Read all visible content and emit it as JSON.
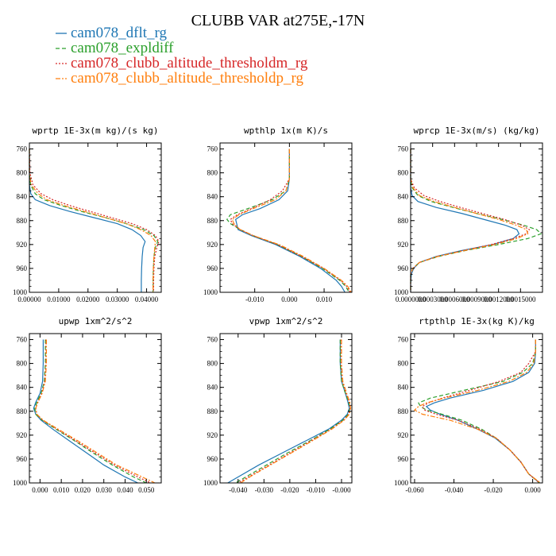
{
  "figure": {
    "title": "CLUBB VAR at275E,-17N"
  },
  "legend": [
    {
      "name": "cam078_dflt_rg",
      "color": "#1f77b4",
      "dash": "solid"
    },
    {
      "name": "cam078_expldiff",
      "color": "#2ca02c",
      "dash": "dash"
    },
    {
      "name": "cam078_clubb_altitude_thresholdm_rg",
      "color": "#d62728",
      "dash": "dot"
    },
    {
      "name": "cam078_clubb_altitude_thresholdp_rg",
      "color": "#ff7f0e",
      "dash": "dashdot"
    }
  ],
  "chart_data": [
    {
      "type": "line",
      "title": "wprtp  1E-3x(m kg)/(s kg)",
      "xlim": [
        0,
        0.045
      ],
      "ylim": [
        1000,
        750
      ],
      "xticks": [
        0,
        0.01,
        0.02,
        0.03,
        0.04
      ],
      "xtick_labels": [
        "0.00000",
        "0.01000",
        "0.02000",
        "0.03000",
        "0.04000"
      ],
      "yticks": [
        760,
        800,
        840,
        880,
        920,
        960,
        1000
      ],
      "y": [
        760,
        800,
        820,
        835,
        845,
        855,
        865,
        875,
        885,
        895,
        905,
        915,
        925,
        940,
        960,
        980,
        1000
      ],
      "series": [
        {
          "values": [
            0,
            0,
            0,
            0.0005,
            0.002,
            0.007,
            0.014,
            0.022,
            0.03,
            0.035,
            0.038,
            0.0395,
            0.0388,
            0.0385,
            0.0383,
            0.0382,
            0.0382
          ]
        },
        {
          "values": [
            0,
            0,
            0.0004,
            0.002,
            0.005,
            0.011,
            0.018,
            0.026,
            0.033,
            0.039,
            0.0425,
            0.0438,
            0.043,
            0.0425,
            0.0423,
            0.0422,
            0.0422
          ]
        },
        {
          "values": [
            0,
            0.0002,
            0.0012,
            0.004,
            0.008,
            0.014,
            0.021,
            0.028,
            0.035,
            0.04,
            0.043,
            0.0442,
            0.0435,
            0.0428,
            0.0425,
            0.0424,
            0.0424
          ]
        },
        {
          "values": [
            0,
            0,
            0.0006,
            0.003,
            0.006,
            0.012,
            0.019,
            0.026,
            0.033,
            0.038,
            0.0415,
            0.043,
            0.0428,
            0.0425,
            0.0423,
            0.0422,
            0.0422
          ]
        }
      ]
    },
    {
      "type": "line",
      "title": "wpthlp  1x(m K)/s",
      "xlim": [
        -0.02,
        0.018
      ],
      "ylim": [
        1000,
        750
      ],
      "xticks": [
        -0.01,
        0,
        0.01
      ],
      "xtick_labels": [
        "-0.010",
        "0.000",
        "0.010"
      ],
      "yticks": [
        760,
        800,
        840,
        880,
        920,
        960,
        1000
      ],
      "y": [
        760,
        810,
        830,
        845,
        860,
        870,
        878,
        885,
        895,
        905,
        920,
        940,
        960,
        980,
        990,
        1000
      ],
      "series": [
        {
          "values": [
            0,
            0,
            -0.0005,
            -0.003,
            -0.0085,
            -0.0135,
            -0.0155,
            -0.0152,
            -0.0148,
            -0.011,
            -0.004,
            0.003,
            0.009,
            0.0135,
            0.015,
            0.016
          ]
        },
        {
          "values": [
            0,
            0,
            -0.001,
            -0.005,
            -0.012,
            -0.017,
            -0.018,
            -0.017,
            -0.0142,
            -0.0105,
            -0.0035,
            0.0035,
            0.0095,
            0.0145,
            0.0162,
            0.0172
          ]
        },
        {
          "values": [
            0,
            0,
            -0.002,
            -0.0055,
            -0.011,
            -0.015,
            -0.017,
            -0.0165,
            -0.0142,
            -0.0105,
            -0.0035,
            0.0035,
            0.0098,
            0.0148,
            0.0165,
            0.0175
          ]
        },
        {
          "values": [
            0,
            0,
            -0.001,
            -0.004,
            -0.0105,
            -0.0145,
            -0.0165,
            -0.016,
            -0.0142,
            -0.0105,
            -0.003,
            0.004,
            0.01,
            0.015,
            0.0168,
            0.0178
          ]
        }
      ]
    },
    {
      "type": "line",
      "title": "wprcp  1E-3x(m/s) (kg/kg)",
      "xlim": [
        0,
        0.0018
      ],
      "ylim": [
        1000,
        750
      ],
      "xticks": [
        0,
        0.0003,
        0.0006,
        0.0009,
        0.0012,
        0.0015
      ],
      "xtick_labels": [
        "0.0000000",
        "0.0003000",
        "0.0006000",
        "0.0009000",
        "0.0012000",
        "0.0015000"
      ],
      "yticks": [
        760,
        800,
        840,
        880,
        920,
        960,
        1000
      ],
      "y": [
        760,
        810,
        825,
        838,
        848,
        858,
        868,
        878,
        888,
        895,
        902,
        910,
        920,
        930,
        940,
        950,
        960,
        970,
        985,
        1000
      ],
      "series": [
        {
          "values": [
            0,
            0,
            0,
            2e-05,
            0.0001,
            0.00035,
            0.0007,
            0.001,
            0.0013,
            0.00145,
            0.00148,
            0.0014,
            0.00112,
            0.0007,
            0.00035,
            0.00012,
            4e-05,
            1e-05,
            0,
            0
          ]
        },
        {
          "values": [
            0,
            0,
            2e-05,
            0.0001,
            0.00028,
            0.00058,
            0.0009,
            0.00125,
            0.00155,
            0.00172,
            0.00178,
            0.0016,
            0.0012,
            0.00075,
            0.00038,
            0.00012,
            3e-05,
            0,
            0,
            0
          ]
        },
        {
          "values": [
            0,
            0,
            5e-05,
            0.00018,
            0.0004,
            0.00068,
            0.00098,
            0.00128,
            0.00152,
            0.00162,
            0.00158,
            0.0014,
            0.0011,
            0.00072,
            0.00036,
            0.00012,
            3e-05,
            0,
            0,
            0
          ]
        },
        {
          "values": [
            0,
            0,
            3e-05,
            0.00012,
            0.00032,
            0.0006,
            0.0009,
            0.0012,
            0.00145,
            0.00158,
            0.0016,
            0.00145,
            0.00115,
            0.00074,
            0.00037,
            0.00012,
            3e-05,
            0,
            0,
            0
          ]
        }
      ]
    },
    {
      "type": "line",
      "title": "upwp  1xm^2/s^2",
      "xlim": [
        -0.005,
        0.057
      ],
      "ylim": [
        1000,
        750
      ],
      "xticks": [
        0,
        0.01,
        0.02,
        0.03,
        0.04,
        0.05
      ],
      "xtick_labels": [
        "0.000",
        "0.010",
        "0.020",
        "0.030",
        "0.040",
        "0.050"
      ],
      "yticks": [
        760,
        800,
        840,
        880,
        920,
        960,
        1000
      ],
      "y": [
        760,
        800,
        830,
        850,
        865,
        875,
        885,
        895,
        910,
        930,
        950,
        970,
        990,
        1000
      ],
      "series": [
        {
          "values": [
            0.0015,
            0.0015,
            0.0012,
            0,
            -0.002,
            -0.003,
            -0.002,
            0.0005,
            0.006,
            0.014,
            0.022,
            0.03,
            0.04,
            0.046
          ]
        },
        {
          "values": [
            0.0025,
            0.0025,
            0.002,
            0.0005,
            -0.0015,
            -0.0025,
            -0.002,
            0.001,
            0.0075,
            0.0165,
            0.025,
            0.034,
            0.044,
            0.05
          ]
        },
        {
          "values": [
            0.0028,
            0.0028,
            0.0022,
            0.0008,
            -0.001,
            -0.002,
            -0.0015,
            0.0012,
            0.008,
            0.017,
            0.026,
            0.035,
            0.046,
            0.052
          ]
        },
        {
          "values": [
            0.003,
            0.003,
            0.0025,
            0.001,
            -0.001,
            -0.002,
            -0.0015,
            0.0015,
            0.0085,
            0.018,
            0.027,
            0.036,
            0.048,
            0.054
          ]
        }
      ]
    },
    {
      "type": "line",
      "title": "vpwp  1xm^2/s^2",
      "xlim": [
        -0.047,
        0.004
      ],
      "ylim": [
        1000,
        750
      ],
      "xticks": [
        -0.04,
        -0.03,
        -0.02,
        -0.01,
        0
      ],
      "xtick_labels": [
        "-0.040",
        "-0.030",
        "-0.020",
        "-0.010",
        "-0.000"
      ],
      "yticks": [
        760,
        800,
        840,
        880,
        920,
        960,
        1000
      ],
      "y": [
        760,
        800,
        830,
        850,
        865,
        875,
        885,
        895,
        910,
        930,
        950,
        970,
        990,
        1000
      ],
      "series": [
        {
          "values": [
            -0.0005,
            -0.0005,
            0,
            0.0015,
            0.0025,
            0.003,
            0.0022,
            0,
            -0.005,
            -0.014,
            -0.023,
            -0.032,
            -0.04,
            -0.044
          ]
        },
        {
          "values": [
            -0.0005,
            -0.0005,
            0,
            0.0015,
            0.0028,
            0.0032,
            0.0026,
            0.0005,
            -0.0045,
            -0.0125,
            -0.021,
            -0.029,
            -0.037,
            -0.041
          ]
        },
        {
          "values": [
            -0.0002,
            -0.0002,
            0.0003,
            0.0018,
            0.003,
            0.0033,
            0.0028,
            0.0008,
            -0.004,
            -0.012,
            -0.02,
            -0.028,
            -0.036,
            -0.04
          ]
        },
        {
          "values": [
            0,
            0,
            0.0005,
            0.002,
            0.0032,
            0.0035,
            0.003,
            0.001,
            -0.0038,
            -0.0115,
            -0.0195,
            -0.0275,
            -0.0355,
            -0.039
          ]
        }
      ]
    },
    {
      "type": "line",
      "title": "rtpthlp  1E-3x(kg K)/kg",
      "xlim": [
        -0.062,
        0.005
      ],
      "ylim": [
        1000,
        750
      ],
      "xticks": [
        -0.06,
        -0.04,
        -0.02,
        0
      ],
      "xtick_labels": [
        "-0.060",
        "-0.040",
        "-0.020",
        "0.000"
      ],
      "yticks": [
        760,
        800,
        840,
        880,
        920,
        960,
        1000
      ],
      "y": [
        760,
        780,
        800,
        815,
        830,
        845,
        858,
        866,
        872,
        878,
        885,
        895,
        910,
        925,
        945,
        965,
        985,
        1000
      ],
      "series": [
        {
          "values": [
            0.0015,
            0.0015,
            0.001,
            -0.002,
            -0.01,
            -0.025,
            -0.042,
            -0.05,
            -0.054,
            -0.052,
            -0.047,
            -0.038,
            -0.028,
            -0.019,
            -0.0115,
            -0.006,
            -0.002,
            0.0035
          ]
        },
        {
          "values": [
            0.0015,
            0.0015,
            0,
            -0.005,
            -0.015,
            -0.035,
            -0.052,
            -0.058,
            -0.057,
            -0.054,
            -0.046,
            -0.036,
            -0.026,
            -0.0185,
            -0.0115,
            -0.006,
            -0.002,
            0.0035
          ]
        },
        {
          "values": [
            0.0015,
            0.0015,
            -0.002,
            -0.006,
            -0.017,
            -0.032,
            -0.046,
            -0.053,
            -0.056,
            -0.055,
            -0.049,
            -0.038,
            -0.027,
            -0.0185,
            -0.0115,
            -0.006,
            -0.002,
            0.0035
          ]
        },
        {
          "values": [
            0.0015,
            0.0015,
            0.0005,
            -0.003,
            -0.012,
            -0.028,
            -0.045,
            -0.054,
            -0.058,
            -0.06,
            -0.056,
            -0.042,
            -0.028,
            -0.0185,
            -0.0115,
            -0.006,
            -0.002,
            0.004
          ]
        }
      ]
    }
  ]
}
